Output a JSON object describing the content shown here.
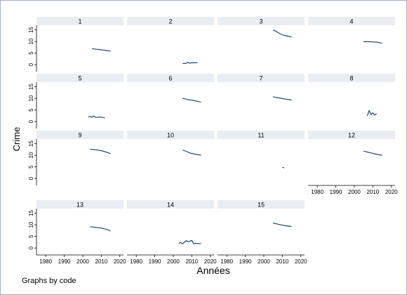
{
  "chart_data": {
    "type": "line",
    "xlabel": "Années",
    "ylabel": "Crime",
    "note": "Graphs by code",
    "xlim": [
      1975,
      2022
    ],
    "ylim": [
      -3,
      17
    ],
    "x_ticks": [
      1980,
      1990,
      2000,
      2010,
      2020
    ],
    "y_ticks": [
      0,
      5,
      10,
      15
    ],
    "grid": false,
    "line_color": "#1a476f",
    "strip_color": "#e8eef3",
    "panels": [
      {
        "label": "1",
        "x": [
          2005,
          2008,
          2011,
          2015
        ],
        "values": [
          6.9,
          6.6,
          6.3,
          5.9
        ]
      },
      {
        "label": "2",
        "x": [
          2005,
          2007,
          2008,
          2009,
          2010,
          2011,
          2013
        ],
        "values": [
          0.5,
          0.6,
          1.0,
          0.6,
          0.9,
          0.8,
          0.9
        ]
      },
      {
        "label": "3",
        "x": [
          2005,
          2007,
          2009,
          2011,
          2013,
          2015
        ],
        "values": [
          15.0,
          14.2,
          13.2,
          12.6,
          12.3,
          11.9
        ]
      },
      {
        "label": "4",
        "x": [
          2005,
          2008,
          2011,
          2013,
          2015
        ],
        "values": [
          9.9,
          9.9,
          9.8,
          9.6,
          9.2
        ]
      },
      {
        "label": "5",
        "x": [
          2003,
          2004,
          2005,
          2006,
          2007,
          2008,
          2010,
          2012
        ],
        "values": [
          2.0,
          2.2,
          1.9,
          2.4,
          1.8,
          1.9,
          1.9,
          1.6
        ]
      },
      {
        "label": "6",
        "x": [
          2005,
          2008,
          2011,
          2015
        ],
        "values": [
          10.0,
          9.5,
          9.1,
          8.4
        ]
      },
      {
        "label": "7",
        "x": [
          2005,
          2008,
          2011,
          2015
        ],
        "values": [
          10.7,
          10.2,
          9.8,
          9.3
        ]
      },
      {
        "label": "8",
        "x": [
          2007,
          2008,
          2009,
          2010,
          2011,
          2012
        ],
        "values": [
          2.5,
          4.8,
          3.0,
          3.8,
          2.8,
          3.4
        ]
      },
      {
        "label": "9",
        "x": [
          2004,
          2007,
          2010,
          2013,
          2015
        ],
        "values": [
          12.6,
          12.4,
          12.0,
          11.3,
          10.7
        ]
      },
      {
        "label": "10",
        "x": [
          2005,
          2007,
          2009,
          2011,
          2013,
          2015
        ],
        "values": [
          12.3,
          11.7,
          11.0,
          10.6,
          10.3,
          10.1
        ]
      },
      {
        "label": "11",
        "x": [
          2010,
          2011
        ],
        "values": [
          4.8,
          4.6
        ]
      },
      {
        "label": "12",
        "x": [
          2005,
          2008,
          2011,
          2015
        ],
        "values": [
          11.8,
          11.2,
          10.6,
          10.0
        ]
      },
      {
        "label": "13",
        "x": [
          2004,
          2007,
          2010,
          2013,
          2015
        ],
        "values": [
          9.2,
          8.9,
          8.6,
          8.0,
          7.4
        ]
      },
      {
        "label": "14",
        "x": [
          2003,
          2004,
          2005,
          2006,
          2007,
          2008,
          2009,
          2010,
          2011,
          2012,
          2015
        ],
        "values": [
          2.0,
          2.4,
          1.8,
          2.5,
          3.2,
          2.7,
          2.9,
          3.3,
          1.8,
          2.0,
          1.9
        ]
      },
      {
        "label": "15",
        "x": [
          2005,
          2008,
          2011,
          2015
        ],
        "values": [
          10.8,
          10.2,
          9.7,
          9.3
        ]
      }
    ]
  }
}
